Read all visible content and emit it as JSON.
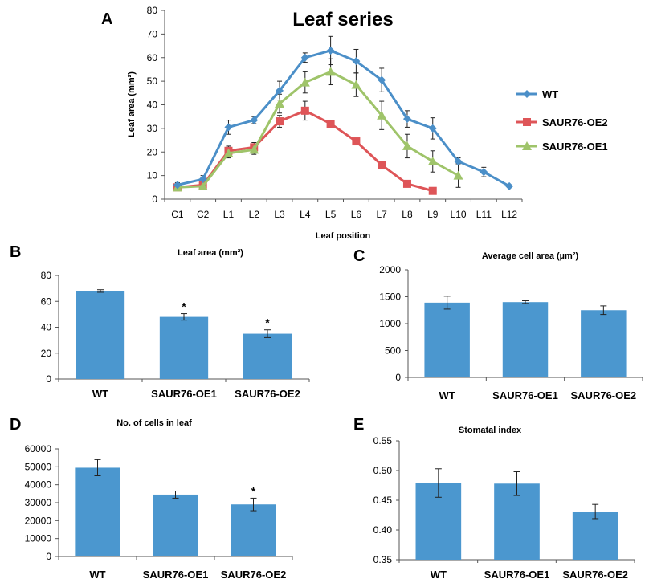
{
  "panels": {
    "A": "A",
    "B": "B",
    "C": "C",
    "D": "D",
    "E": "E"
  },
  "chart_data": [
    {
      "id": "A",
      "type": "line",
      "title": "Leaf series",
      "xlabel": "Leaf position",
      "ylabel": "Leaf area (mm²)",
      "ylim": [
        0,
        80
      ],
      "yticks": [
        0,
        10,
        20,
        30,
        40,
        50,
        60,
        70,
        80
      ],
      "categories": [
        "C1",
        "C2",
        "L1",
        "L2",
        "L3",
        "L4",
        "L5",
        "L6",
        "L7",
        "L8",
        "L9",
        "L10",
        "L11",
        "L12"
      ],
      "legend": "right",
      "series": [
        {
          "name": "WT",
          "color": "#4b8fc8",
          "marker": "diamond",
          "values": [
            6,
            8.5,
            30.5,
            33.5,
            46,
            60,
            63,
            58.5,
            50.5,
            34,
            30,
            16,
            11.5,
            5.5
          ],
          "errors": [
            1,
            1.5,
            3,
            1.5,
            4,
            2,
            6,
            5,
            5,
            3.5,
            4.5,
            1.5,
            2,
            0.5
          ]
        },
        {
          "name": "SAUR76-OE2",
          "color": "#de5558",
          "marker": "square",
          "values": [
            5,
            6,
            20.5,
            22,
            33,
            37.5,
            32,
            24.5,
            14.5,
            6.5,
            3.5,
            null,
            null,
            null
          ],
          "errors": [
            1,
            1,
            2,
            2,
            2.5,
            4,
            1,
            1,
            1,
            0.5,
            0.5,
            null,
            null,
            null
          ]
        },
        {
          "name": "SAUR76-OE1",
          "color": "#9fc46a",
          "marker": "triangle",
          "values": [
            5,
            5.5,
            19.5,
            21,
            40.5,
            49.5,
            54,
            48.5,
            35.5,
            22.5,
            16,
            10,
            null,
            null
          ],
          "errors": [
            1,
            1,
            2,
            2,
            4,
            4.5,
            5.5,
            5,
            6,
            5,
            4.5,
            5,
            null,
            null
          ]
        }
      ]
    },
    {
      "id": "B",
      "type": "bar",
      "title": "Leaf area (mm²)",
      "categories": [
        "WT",
        "SAUR76-OE1",
        "SAUR76-OE2"
      ],
      "values": [
        68,
        48,
        35
      ],
      "errors": [
        1,
        2.5,
        3
      ],
      "significance": [
        "",
        "*",
        "*"
      ],
      "ylim": [
        0,
        80
      ],
      "yticks": [
        0,
        20,
        40,
        60,
        80
      ],
      "color": "#4b97cf"
    },
    {
      "id": "C",
      "type": "bar",
      "title": "Average cell area (µm²)",
      "categories": [
        "WT",
        "SAUR76-OE1",
        "SAUR76-OE2"
      ],
      "values": [
        1390,
        1400,
        1250
      ],
      "errors": [
        120,
        25,
        80
      ],
      "significance": [
        "",
        "",
        ""
      ],
      "ylim": [
        0,
        2000
      ],
      "yticks": [
        0,
        500,
        1000,
        1500,
        2000
      ],
      "color": "#4b97cf"
    },
    {
      "id": "D",
      "type": "bar",
      "title": "No. of cells in leaf",
      "categories": [
        "WT",
        "SAUR76-OE1",
        "SAUR76-OE2"
      ],
      "values": [
        49500,
        34500,
        29000
      ],
      "errors": [
        4500,
        2000,
        3500
      ],
      "significance": [
        "",
        "",
        "*"
      ],
      "ylim": [
        0,
        60000
      ],
      "yticks": [
        0,
        10000,
        20000,
        30000,
        40000,
        50000,
        60000
      ],
      "color": "#4b97cf"
    },
    {
      "id": "E",
      "type": "bar",
      "title": "Stomatal index",
      "categories": [
        "WT",
        "SAUR76-OE1",
        "SAUR76-OE2"
      ],
      "values": [
        0.479,
        0.478,
        0.431
      ],
      "errors": [
        0.024,
        0.02,
        0.012
      ],
      "significance": [
        "",
        "",
        ""
      ],
      "ylim": [
        0.35,
        0.55
      ],
      "yticks": [
        0.35,
        0.4,
        0.45,
        0.5,
        0.55
      ],
      "color": "#4b97cf"
    }
  ]
}
